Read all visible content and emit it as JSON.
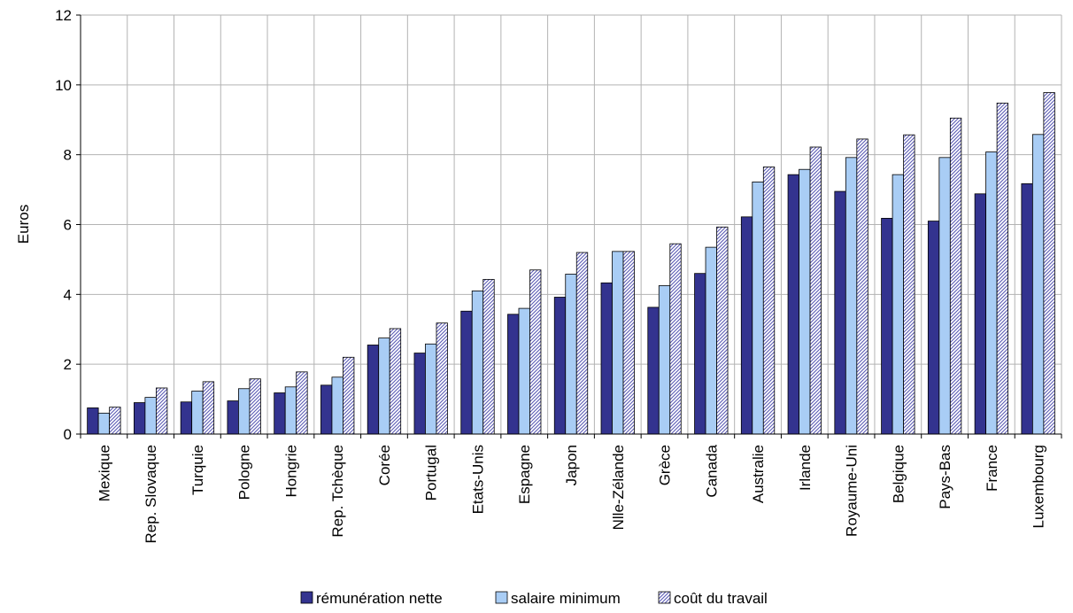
{
  "chart_data": {
    "type": "bar",
    "title": "",
    "xlabel": "",
    "ylabel": "Euros",
    "ylim": [
      0,
      12
    ],
    "yticks": [
      0,
      2,
      4,
      6,
      8,
      10,
      12
    ],
    "grid": true,
    "legend_position": "bottom",
    "categories": [
      "Mexique",
      "Rep. Slovaque",
      "Turquie",
      "Pologne",
      "Hongrie",
      "Rep. Tchèque",
      "Corée",
      "Portugal",
      "Etats-Unis",
      "Espagne",
      "Japon",
      "Nlle-Zélande",
      "Grèce",
      "Canada",
      "Australie",
      "Irlande",
      "Royaume-Uni",
      "Belgique",
      "Pays-Bas",
      "France",
      "Luxembourg"
    ],
    "series": [
      {
        "name": "rémunération nette",
        "color": "#33338f",
        "pattern": "solid",
        "values": [
          0.75,
          0.9,
          0.92,
          0.95,
          1.18,
          1.4,
          2.55,
          2.32,
          3.52,
          3.43,
          3.92,
          4.33,
          3.63,
          4.6,
          6.22,
          7.43,
          6.95,
          6.18,
          6.1,
          6.88,
          7.17
        ]
      },
      {
        "name": "salaire minimum",
        "color": "#a9cdf5",
        "pattern": "solid",
        "values": [
          0.6,
          1.05,
          1.23,
          1.3,
          1.35,
          1.63,
          2.75,
          2.58,
          4.1,
          3.6,
          4.58,
          5.23,
          4.25,
          5.35,
          7.22,
          7.58,
          7.92,
          7.43,
          7.92,
          8.08,
          8.58
        ]
      },
      {
        "name": "coût du travail",
        "color": "#9b9bd0",
        "pattern": "hatched",
        "values": [
          0.77,
          1.32,
          1.5,
          1.58,
          1.78,
          2.2,
          3.02,
          3.18,
          4.43,
          4.7,
          5.2,
          5.23,
          5.45,
          5.93,
          7.65,
          8.22,
          8.45,
          8.57,
          9.05,
          9.48,
          9.78
        ]
      }
    ]
  }
}
